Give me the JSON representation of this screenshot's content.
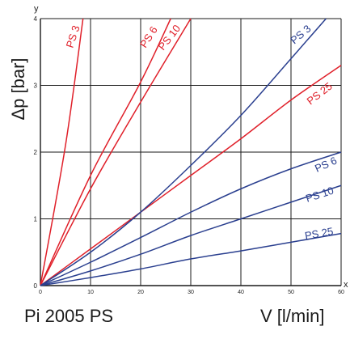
{
  "chart_data": {
    "type": "line",
    "title": "Pi 2005 PS",
    "xlabel": "V [l/min]",
    "ylabel": "Δp [bar]",
    "x_axis_letter": "x",
    "y_axis_letter": "y",
    "xlim": [
      0,
      60
    ],
    "ylim": [
      0,
      4
    ],
    "xticks": [
      0,
      10,
      20,
      30,
      40,
      50,
      60
    ],
    "yticks": [
      0,
      1,
      2,
      3,
      4
    ],
    "grid": true,
    "series": [
      {
        "name": "PS 3",
        "color": "#e0202a",
        "points": [
          [
            0,
            0
          ],
          [
            5,
            2.1
          ],
          [
            8.5,
            4.0
          ]
        ]
      },
      {
        "name": "PS 6",
        "color": "#e0202a",
        "points": [
          [
            0,
            0
          ],
          [
            10,
            1.65
          ],
          [
            20,
            3.05
          ],
          [
            26,
            4.0
          ]
        ]
      },
      {
        "name": "PS 10",
        "color": "#e0202a",
        "points": [
          [
            0,
            0
          ],
          [
            10,
            1.45
          ],
          [
            20,
            2.75
          ],
          [
            30,
            4.0
          ]
        ]
      },
      {
        "name": "PS 25",
        "color": "#e0202a",
        "points": [
          [
            0,
            0
          ],
          [
            10,
            0.55
          ],
          [
            20,
            1.1
          ],
          [
            30,
            1.65
          ],
          [
            40,
            2.2
          ],
          [
            50,
            2.78
          ],
          [
            60,
            3.3
          ]
        ]
      },
      {
        "name": "PS 3",
        "color": "#2a3f8f",
        "points": [
          [
            0,
            0
          ],
          [
            10,
            0.5
          ],
          [
            20,
            1.1
          ],
          [
            30,
            1.8
          ],
          [
            40,
            2.55
          ],
          [
            50,
            3.4
          ],
          [
            57,
            4.0
          ]
        ]
      },
      {
        "name": "PS 6",
        "color": "#2a3f8f",
        "points": [
          [
            0,
            0
          ],
          [
            10,
            0.35
          ],
          [
            20,
            0.72
          ],
          [
            30,
            1.1
          ],
          [
            40,
            1.45
          ],
          [
            50,
            1.75
          ],
          [
            60,
            2.0
          ]
        ]
      },
      {
        "name": "PS 10",
        "color": "#2a3f8f",
        "points": [
          [
            0,
            0
          ],
          [
            10,
            0.22
          ],
          [
            20,
            0.47
          ],
          [
            30,
            0.75
          ],
          [
            40,
            1.0
          ],
          [
            50,
            1.25
          ],
          [
            60,
            1.5
          ]
        ]
      },
      {
        "name": "PS 25",
        "color": "#2a3f8f",
        "points": [
          [
            0,
            0
          ],
          [
            10,
            0.12
          ],
          [
            20,
            0.25
          ],
          [
            30,
            0.4
          ],
          [
            40,
            0.52
          ],
          [
            50,
            0.65
          ],
          [
            60,
            0.78
          ]
        ]
      }
    ]
  }
}
